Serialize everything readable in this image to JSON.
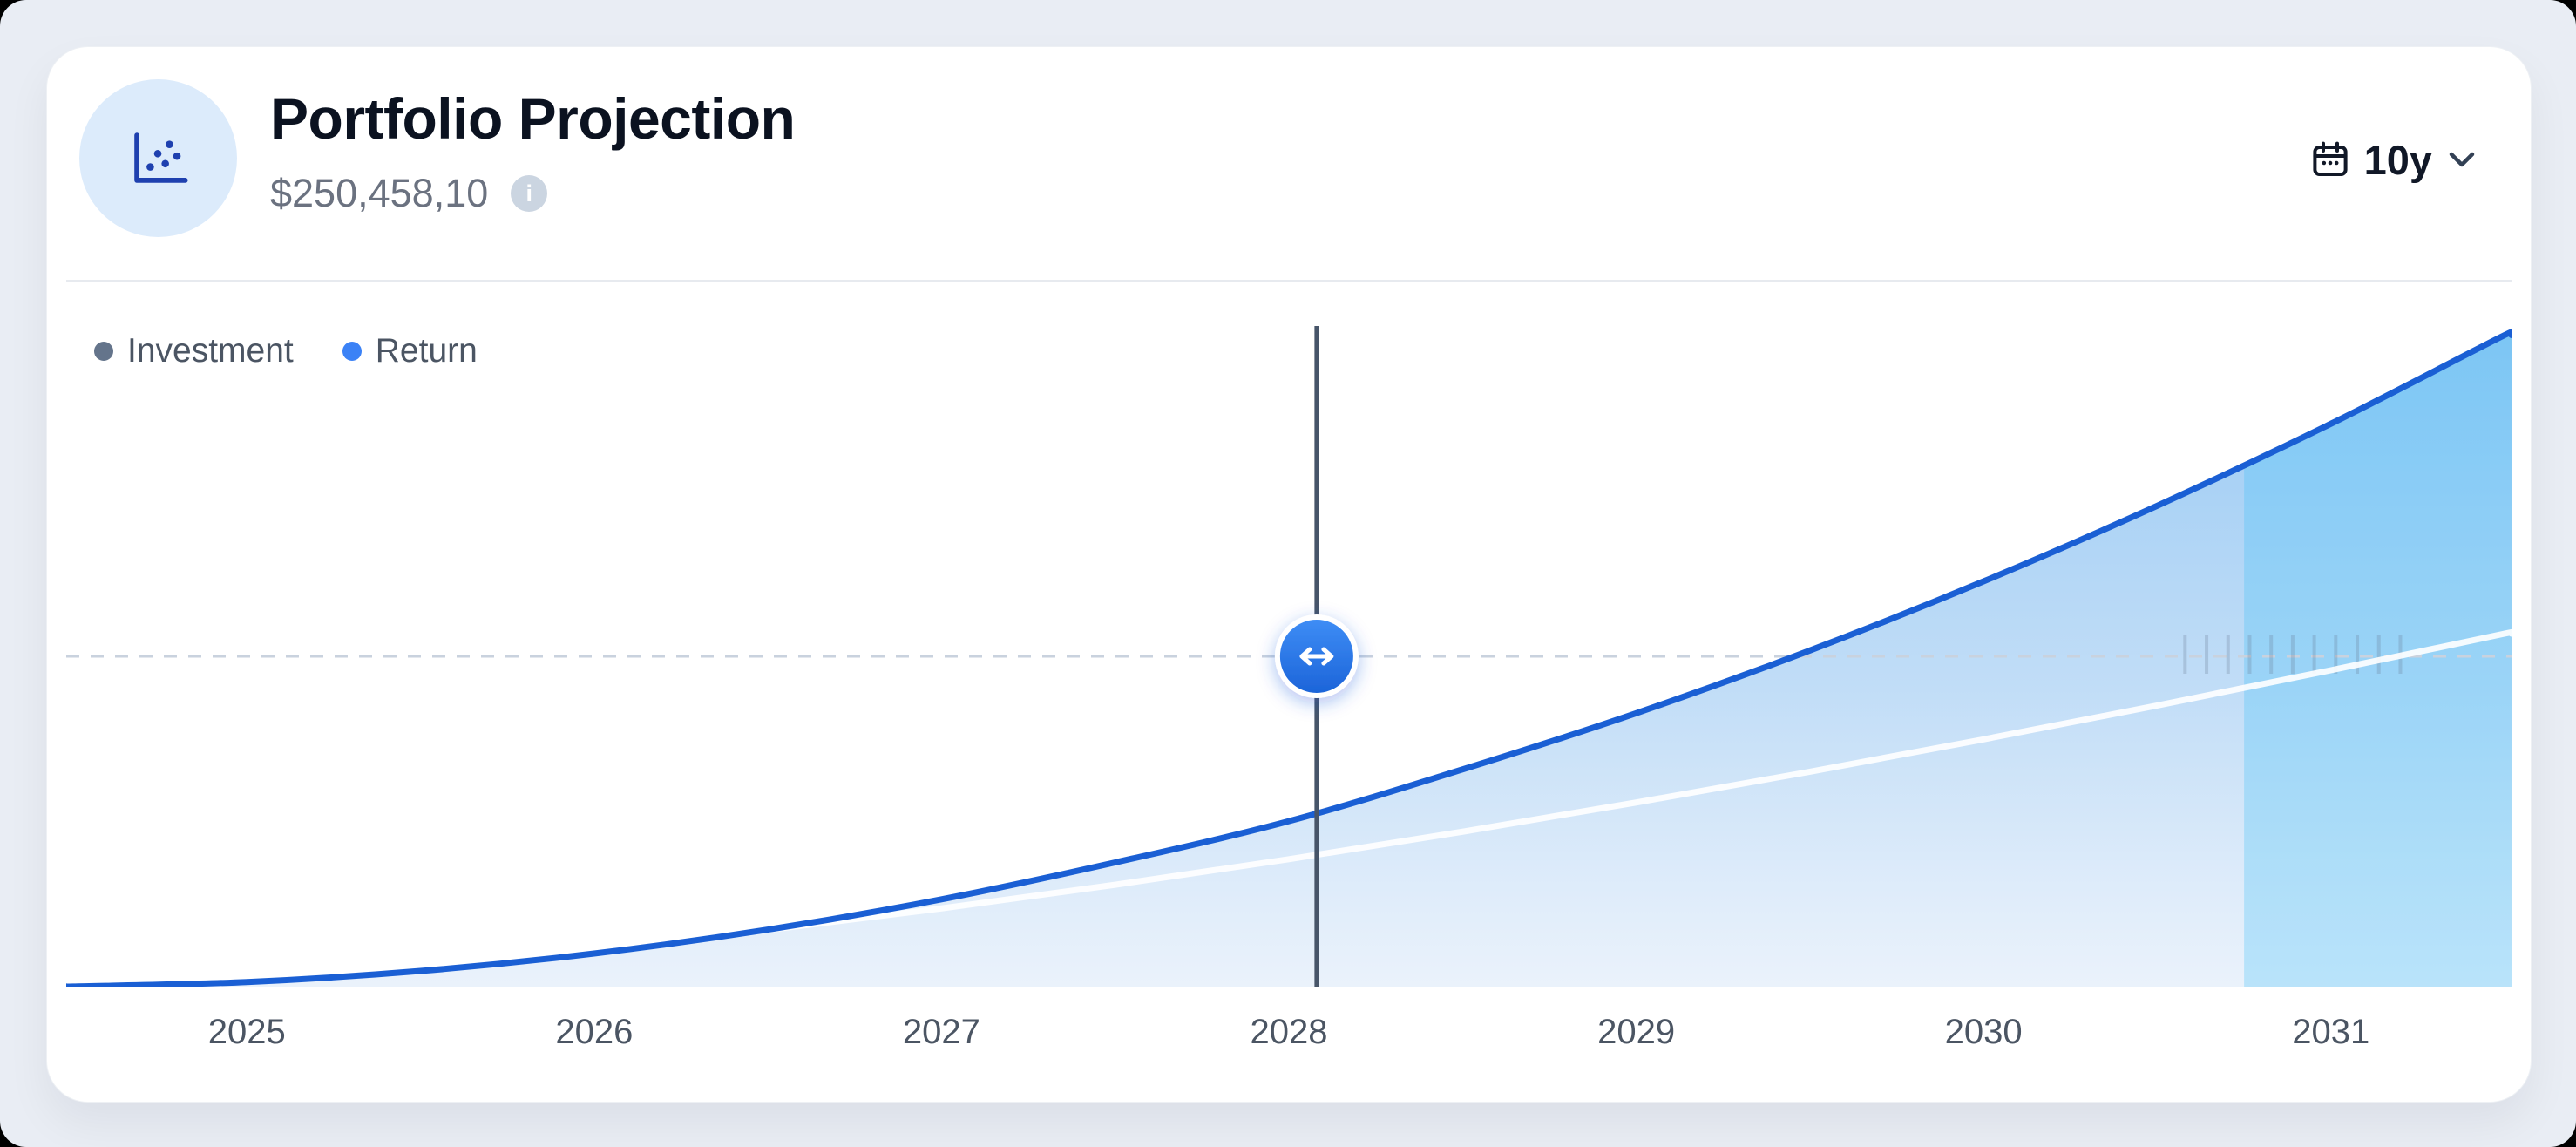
{
  "header": {
    "title": "Portfolio Projection",
    "value": "$250,458,10",
    "icon": "scatter-chart-icon",
    "info_icon": "info-icon",
    "period": {
      "calendar_icon": "calendar-icon",
      "label": "10y",
      "chevron_icon": "chevron-down-icon"
    }
  },
  "legend": [
    {
      "label": "Investment",
      "color": "#64748b"
    },
    {
      "label": "Return",
      "color": "#3b82f6"
    }
  ],
  "colors": {
    "card_bg": "#ffffff",
    "page_bg": "#e9edf4",
    "accent_blue": "#1a5fd4",
    "area_fill_top": "#8dc4f2",
    "area_fill_bottom": "#d9e7f8",
    "highlight_band": "#38bdf8",
    "investment_line": "rgba(255,255,255,0.9)",
    "scrubber_line": "#475569",
    "dashed_line": "#c9d2de",
    "handle_top": "#3f8ef6",
    "handle_bottom": "#1b63d8"
  },
  "chart_data": {
    "type": "area",
    "title": "Portfolio Projection",
    "x_ticks": [
      2025,
      2026,
      2027,
      2028,
      2029,
      2030,
      2031
    ],
    "x_range": [
      2024.48,
      2031.52
    ],
    "ylim": [
      0,
      1000000
    ],
    "grid": false,
    "legend_position": "top-left",
    "x": [
      2024.5,
      2025,
      2025.5,
      2026,
      2026.5,
      2027,
      2027.5,
      2028,
      2028.5,
      2029,
      2029.5,
      2030,
      2030.5,
      2031,
      2031.5
    ],
    "series": [
      {
        "name": "Investment",
        "color": "rgba(255,255,255,0.9)",
        "values": [
          900,
          13100,
          32600,
          57200,
          85900,
          118400,
          154200,
          192900,
          234500,
          278700,
          325300,
          374300,
          425500,
          478900,
          534300
        ]
      },
      {
        "name": "Return",
        "color": "#1a5fd4",
        "values": [
          200,
          7000,
          23700,
          50100,
          86300,
          132200,
          188000,
          250458,
          328800,
          413900,
          508800,
          613400,
          727900,
          852000,
          986100
        ]
      }
    ],
    "marker": {
      "x": 2028.08,
      "dashed_value": 500000,
      "handle_icon": "horizontal-drag-icon"
    },
    "highlight_from_x": 2030.75,
    "scrub_ticks": {
      "x_start": 2030.58,
      "x_end": 2031.2,
      "count": 11
    }
  }
}
